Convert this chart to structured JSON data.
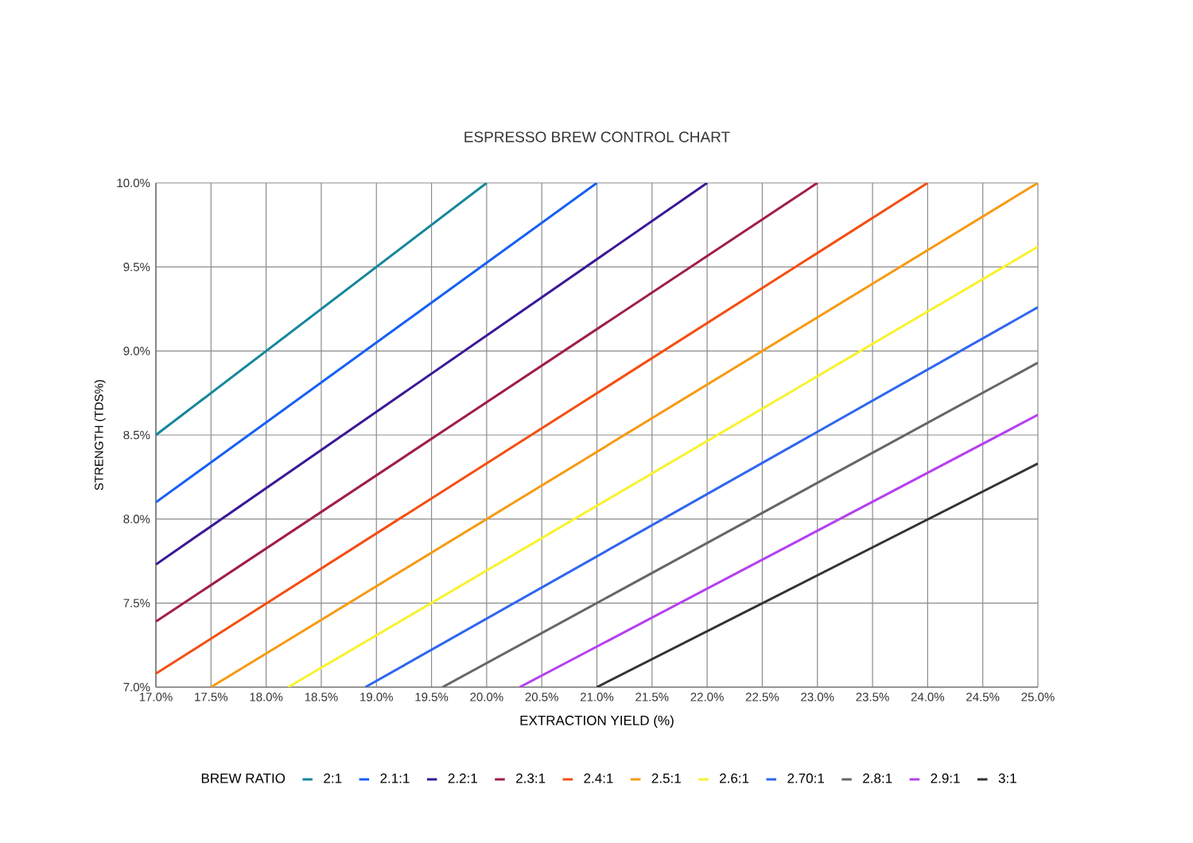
{
  "chart_data": {
    "type": "line",
    "title": "ESPRESSO BREW CONTROL CHART",
    "xlabel": "EXTRACTION YIELD (%)",
    "ylabel": "STRENGTH (TDS%)",
    "legend_title": "BREW RATIO",
    "xlim": [
      17,
      25
    ],
    "ylim": [
      7,
      10
    ],
    "xticks": [
      {
        "value": 17,
        "label": "17.0%"
      },
      {
        "value": 17.5,
        "label": "17.5%"
      },
      {
        "value": 18,
        "label": "18.0%"
      },
      {
        "value": 18.5,
        "label": "18.5%"
      },
      {
        "value": 19,
        "label": "19.0%"
      },
      {
        "value": 19.5,
        "label": "19.5%"
      },
      {
        "value": 20,
        "label": "20.0%"
      },
      {
        "value": 20.5,
        "label": "20.5%"
      },
      {
        "value": 21,
        "label": "21.0%"
      },
      {
        "value": 21.5,
        "label": "21.5%"
      },
      {
        "value": 22,
        "label": "22.0%"
      },
      {
        "value": 22.5,
        "label": "22.5%"
      },
      {
        "value": 23,
        "label": "23.0%"
      },
      {
        "value": 23.5,
        "label": "23.5%"
      },
      {
        "value": 24,
        "label": "24.0%"
      },
      {
        "value": 24.5,
        "label": "24.5%"
      },
      {
        "value": 25,
        "label": "25.0%"
      }
    ],
    "yticks": [
      {
        "value": 7,
        "label": "7.0%"
      },
      {
        "value": 7.5,
        "label": "7.5%"
      },
      {
        "value": 8,
        "label": "8.0%"
      },
      {
        "value": 8.5,
        "label": "8.5%"
      },
      {
        "value": 9,
        "label": "9.0%"
      },
      {
        "value": 9.5,
        "label": "9.5%"
      },
      {
        "value": 10,
        "label": "10.0%"
      }
    ],
    "grid": true,
    "legend": "bottom",
    "marker": "none",
    "line_style": "solid",
    "series": [
      {
        "name": "2:1",
        "color": "#16879a",
        "x": [
          17,
          20
        ],
        "values": [
          8.5,
          10
        ]
      },
      {
        "name": "2.1:1",
        "color": "#1660f5",
        "x": [
          17,
          21
        ],
        "values": [
          8.1,
          10
        ]
      },
      {
        "name": "2.2:1",
        "color": "#3a1896",
        "x": [
          17,
          22
        ],
        "values": [
          7.73,
          10
        ]
      },
      {
        "name": "2.3:1",
        "color": "#a01d4a",
        "x": [
          17,
          23
        ],
        "values": [
          7.39,
          10
        ]
      },
      {
        "name": "2.4:1",
        "color": "#f44e12",
        "x": [
          17,
          24
        ],
        "values": [
          7.08,
          10
        ]
      },
      {
        "name": "2.5:1",
        "color": "#f79a12",
        "x": [
          17.5,
          25
        ],
        "values": [
          7,
          10
        ]
      },
      {
        "name": "2.6:1",
        "color": "#f8f22e",
        "x": [
          18.2,
          25
        ],
        "values": [
          7,
          9.62
        ]
      },
      {
        "name": "2.70:1",
        "color": "#2e66f0",
        "x": [
          18.9,
          25
        ],
        "values": [
          7,
          9.26
        ]
      },
      {
        "name": "2.8:1",
        "color": "#666666",
        "x": [
          19.6,
          25
        ],
        "values": [
          7,
          8.93
        ]
      },
      {
        "name": "2.9:1",
        "color": "#b63ff0",
        "x": [
          20.3,
          25
        ],
        "values": [
          7,
          8.62
        ]
      },
      {
        "name": "3:1",
        "color": "#333333",
        "x": [
          21,
          25
        ],
        "values": [
          7,
          8.33
        ]
      }
    ]
  }
}
